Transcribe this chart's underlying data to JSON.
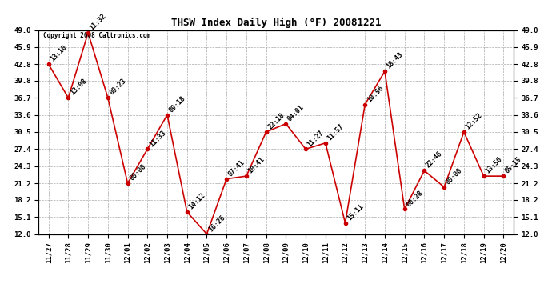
{
  "title": "THSW Index Daily High (°F) 20081221",
  "copyright": "Copyright 2008 Caltronics.com",
  "x_labels": [
    "11/27",
    "11/28",
    "11/29",
    "11/30",
    "12/01",
    "12/02",
    "12/03",
    "12/04",
    "12/05",
    "12/06",
    "12/07",
    "12/08",
    "12/09",
    "12/10",
    "12/11",
    "12/12",
    "12/13",
    "12/14",
    "12/15",
    "12/16",
    "12/17",
    "12/18",
    "12/19",
    "12/20"
  ],
  "y_values": [
    42.8,
    36.7,
    48.5,
    36.7,
    21.2,
    27.4,
    33.6,
    16.0,
    12.0,
    22.0,
    22.5,
    30.5,
    32.0,
    27.4,
    28.5,
    14.0,
    35.5,
    41.5,
    16.5,
    23.5,
    20.5,
    30.5,
    22.5,
    22.5
  ],
  "labels": [
    "13:10",
    "13:08",
    "11:32",
    "09:23",
    "00:00",
    "11:33",
    "09:18",
    "14:12",
    "16:26",
    "07:41",
    "10:41",
    "22:18",
    "04:01",
    "11:27",
    "11:57",
    "15:11",
    "10:56",
    "18:43",
    "00:28",
    "22:46",
    "00:00",
    "12:52",
    "13:56",
    "05:15"
  ],
  "y_ticks": [
    12.0,
    15.1,
    18.2,
    21.2,
    24.3,
    27.4,
    30.5,
    33.6,
    36.7,
    39.8,
    42.8,
    45.9,
    49.0
  ],
  "y_min": 12.0,
  "y_max": 49.0,
  "line_color": "#cc0000",
  "marker_color": "#cc0000",
  "bg_color": "#ffffff",
  "grid_color": "#aaaaaa",
  "title_fontsize": 9,
  "label_fontsize": 6,
  "tick_fontsize": 6.5
}
